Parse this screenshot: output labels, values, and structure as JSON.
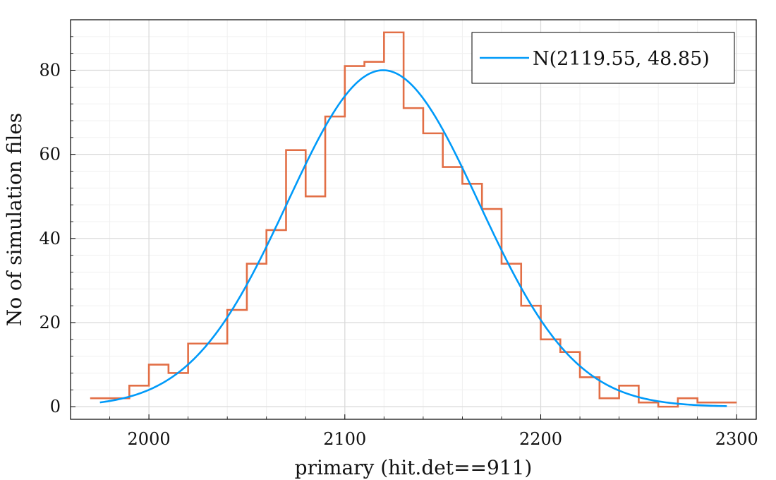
{
  "chart_data": {
    "type": "histogram",
    "xlabel": "primary (hit.det==911)",
    "ylabel": "No of simulation files",
    "xlim": [
      1960,
      2310
    ],
    "ylim": [
      -3,
      92
    ],
    "x_ticks": [
      2000,
      2100,
      2200,
      2300
    ],
    "y_ticks": [
      0,
      20,
      40,
      60,
      80
    ],
    "grid": true,
    "legend_position": "top-right",
    "histogram": {
      "bin_edges": [
        1970,
        1980,
        1990,
        2000,
        2010,
        2020,
        2030,
        2040,
        2050,
        2060,
        2070,
        2080,
        2090,
        2100,
        2110,
        2120,
        2130,
        2140,
        2150,
        2160,
        2170,
        2180,
        2190,
        2200,
        2210,
        2220,
        2230,
        2240,
        2250,
        2260,
        2270,
        2280,
        2290,
        2300
      ],
      "counts": [
        2,
        2,
        5,
        10,
        8,
        15,
        15,
        23,
        34,
        42,
        61,
        50,
        69,
        81,
        82,
        89,
        71,
        65,
        57,
        53,
        47,
        34,
        24,
        16,
        13,
        7,
        2,
        5,
        1,
        0,
        2,
        1,
        1
      ],
      "color": "#e26f46"
    },
    "series": [
      {
        "name": "N(2119.55, 48.85)",
        "type": "line",
        "mean": 2119.55,
        "sd": 48.85,
        "peak": 80,
        "x_range": [
          1975,
          2295
        ],
        "color": "#009af9"
      }
    ]
  }
}
